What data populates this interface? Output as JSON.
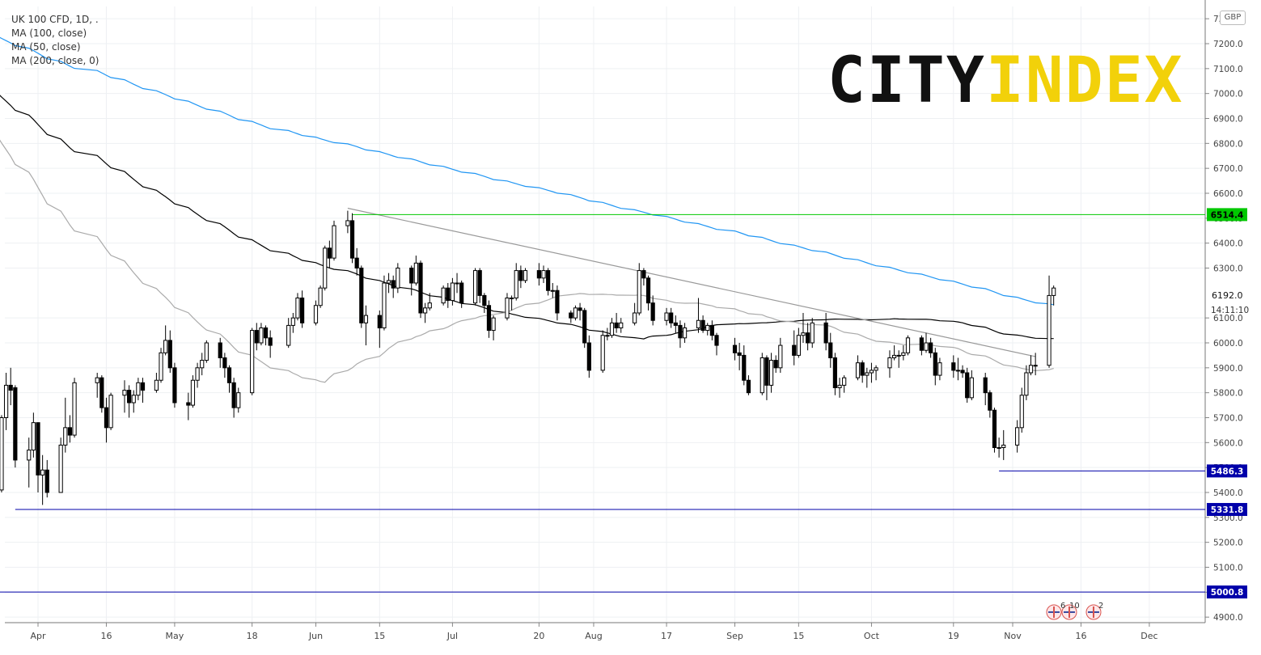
{
  "header": {
    "symbol": "UK 100 CFD, 1D, .",
    "indicators": [
      "MA (100, close)",
      "MA (50, close)",
      "MA (200, close, 0)"
    ]
  },
  "logo": {
    "part1": "CITY",
    "part2": "INDEX"
  },
  "currency": "GBP",
  "clock": "14:11:10",
  "events": [
    "6",
    "10",
    "2"
  ],
  "colors": {
    "up_candle": "#ffffff",
    "down_candle": "#000000",
    "candle_border": "#000000",
    "ma100": "#000000",
    "ma50": "#aaaaaa",
    "ma200": "#2196f3",
    "resistance_line": "#00c800",
    "support_line": "#0000aa",
    "trend_line": "#999999",
    "logo_accent": "#f2d10a"
  },
  "chart_data": {
    "type": "candlestick",
    "y_ticks": [
      "7300.0",
      "7200.0",
      "7100.0",
      "7000.0",
      "6900.0",
      "6800.0",
      "6700.0",
      "6600.0",
      "6500.0",
      "6400.0",
      "6300.0",
      "6192.0",
      "6100.0",
      "6000.0",
      "5900.0",
      "5800.0",
      "5700.0",
      "5600.0",
      "5500.0",
      "5400.0",
      "5300.0",
      "5200.0",
      "5100.0",
      "5000.0",
      "4900.0"
    ],
    "x_ticks": [
      "Apr",
      "16",
      "May",
      "18",
      "Jun",
      "15",
      "Jul",
      "20",
      "Aug",
      "17",
      "Sep",
      "15",
      "Oct",
      "19",
      "Nov",
      "16",
      "Dec"
    ],
    "ylim": [
      4860,
      7350
    ],
    "price_labels": [
      {
        "value": 6514.4,
        "text": "6514.4",
        "kind": "resistance"
      },
      {
        "value": 5486.3,
        "text": "5486.3",
        "kind": "support"
      },
      {
        "value": 5331.8,
        "text": "5331.8",
        "kind": "support"
      },
      {
        "value": 5000.8,
        "text": "5000.8",
        "kind": "support"
      }
    ],
    "trend_line": {
      "from": [
        "Jun 8",
        6540
      ],
      "to": [
        "Nov 6",
        5945
      ]
    },
    "last_price": 6192.0,
    "candles": [
      [
        "Mar 23",
        5200,
        5410,
        4990,
        5450
      ],
      [
        "Mar 24",
        5410,
        5700,
        5400,
        5710
      ],
      [
        "Mar 25",
        5700,
        5830,
        5650,
        5880
      ],
      [
        "Mar 26",
        5830,
        5810,
        5750,
        5900
      ],
      [
        "Mar 27",
        5820,
        5530,
        5500,
        5830
      ],
      [
        "Mar 30",
        5530,
        5570,
        5420,
        5620
      ],
      [
        "Mar 31",
        5570,
        5680,
        5540,
        5720
      ],
      [
        "Apr 1",
        5680,
        5470,
        5400,
        5680
      ],
      [
        "Apr 2",
        5470,
        5490,
        5350,
        5550
      ],
      [
        "Apr 3",
        5490,
        5400,
        5380,
        5530
      ],
      [
        "Apr 6",
        5400,
        5590,
        5400,
        5620
      ],
      [
        "Apr 7",
        5590,
        5660,
        5560,
        5780
      ],
      [
        "Apr 8",
        5660,
        5630,
        5600,
        5710
      ],
      [
        "Apr 9",
        5630,
        5840,
        5620,
        5860
      ],
      [
        "Apr 14",
        5840,
        5860,
        5780,
        5880
      ],
      [
        "Apr 15",
        5860,
        5740,
        5720,
        5870
      ],
      [
        "Apr 16",
        5740,
        5660,
        5600,
        5780
      ],
      [
        "Apr 17",
        5660,
        5790,
        5650,
        5800
      ],
      [
        "Apr 20",
        5790,
        5810,
        5720,
        5850
      ],
      [
        "Apr 21",
        5810,
        5760,
        5700,
        5830
      ],
      [
        "Apr 22",
        5760,
        5790,
        5720,
        5810
      ],
      [
        "Apr 23",
        5790,
        5840,
        5770,
        5860
      ],
      [
        "Apr 24",
        5840,
        5810,
        5760,
        5860
      ],
      [
        "Apr 27",
        5810,
        5850,
        5800,
        5880
      ],
      [
        "Apr 28",
        5850,
        5960,
        5840,
        5980
      ],
      [
        "Apr 29",
        5960,
        6010,
        5950,
        6070
      ],
      [
        "Apr 30",
        6010,
        5900,
        5880,
        6050
      ],
      [
        "May 1",
        5900,
        5760,
        5740,
        5920
      ],
      [
        "May 4",
        5760,
        5750,
        5690,
        5800
      ],
      [
        "May 5",
        5750,
        5850,
        5740,
        5870
      ],
      [
        "May 6",
        5850,
        5900,
        5820,
        5920
      ],
      [
        "May 7",
        5900,
        5930,
        5870,
        5960
      ],
      [
        "May 8",
        5930,
        6000,
        5920,
        6010
      ],
      [
        "May 11",
        6000,
        5940,
        5900,
        6020
      ],
      [
        "May 12",
        5940,
        5900,
        5860,
        5960
      ],
      [
        "May 13",
        5900,
        5840,
        5800,
        5910
      ],
      [
        "May 14",
        5840,
        5740,
        5700,
        5860
      ],
      [
        "May 15",
        5740,
        5800,
        5720,
        5820
      ],
      [
        "May 18",
        5800,
        6050,
        5790,
        6060
      ],
      [
        "May 19",
        6050,
        6000,
        5970,
        6080
      ],
      [
        "May 20",
        6000,
        6060,
        5990,
        6080
      ],
      [
        "May 21",
        6060,
        6020,
        5990,
        6070
      ],
      [
        "May 22",
        6020,
        5990,
        5940,
        6050
      ],
      [
        "May 26",
        5990,
        6070,
        5980,
        6100
      ],
      [
        "May 27",
        6070,
        6100,
        6040,
        6120
      ],
      [
        "May 28",
        6100,
        6180,
        6090,
        6200
      ],
      [
        "May 29",
        6180,
        6080,
        6060,
        6210
      ],
      [
        "Jun 1",
        6080,
        6150,
        6070,
        6170
      ],
      [
        "Jun 2",
        6150,
        6220,
        6140,
        6230
      ],
      [
        "Jun 3",
        6220,
        6380,
        6210,
        6390
      ],
      [
        "Jun 4",
        6380,
        6340,
        6300,
        6410
      ],
      [
        "Jun 5",
        6340,
        6470,
        6330,
        6490
      ],
      [
        "Jun 8",
        6470,
        6490,
        6440,
        6530
      ],
      [
        "Jun 9",
        6490,
        6340,
        6320,
        6520
      ],
      [
        "Jun 10",
        6340,
        6300,
        6270,
        6380
      ],
      [
        "Jun 11",
        6300,
        6080,
        6060,
        6310
      ],
      [
        "Jun 12",
        6080,
        6110,
        5990,
        6150
      ],
      [
        "Jun 15",
        6110,
        6060,
        5980,
        6130
      ],
      [
        "Jun 16",
        6060,
        6240,
        6050,
        6270
      ],
      [
        "Jun 17",
        6240,
        6250,
        6200,
        6280
      ],
      [
        "Jun 18",
        6250,
        6220,
        6180,
        6270
      ],
      [
        "Jun 19",
        6220,
        6300,
        6200,
        6320
      ],
      [
        "Jun 22",
        6300,
        6240,
        6190,
        6310
      ],
      [
        "Jun 23",
        6240,
        6320,
        6230,
        6350
      ],
      [
        "Jun 24",
        6320,
        6120,
        6100,
        6330
      ],
      [
        "Jun 25",
        6120,
        6140,
        6080,
        6160
      ],
      [
        "Jun 26",
        6140,
        6160,
        6130,
        6200
      ],
      [
        "Jun 29",
        6160,
        6220,
        6150,
        6230
      ],
      [
        "Jun 30",
        6220,
        6170,
        6140,
        6240
      ],
      [
        "Jul 1",
        6170,
        6240,
        6150,
        6260
      ],
      [
        "Jul 2",
        6240,
        6240,
        6200,
        6280
      ],
      [
        "Jul 3",
        6240,
        6160,
        6140,
        6250
      ],
      [
        "Jul 6",
        6160,
        6290,
        6150,
        6300
      ],
      [
        "Jul 7",
        6290,
        6190,
        6160,
        6300
      ],
      [
        "Jul 8",
        6190,
        6150,
        6120,
        6200
      ],
      [
        "Jul 9",
        6150,
        6050,
        6020,
        6170
      ],
      [
        "Jul 10",
        6050,
        6100,
        6010,
        6110
      ],
      [
        "Jul 13",
        6100,
        6180,
        6090,
        6200
      ],
      [
        "Jul 14",
        6180,
        6180,
        6130,
        6190
      ],
      [
        "Jul 15",
        6180,
        6290,
        6170,
        6320
      ],
      [
        "Jul 16",
        6290,
        6250,
        6220,
        6310
      ],
      [
        "Jul 17",
        6250,
        6290,
        6240,
        6300
      ],
      [
        "Jul 20",
        6290,
        6260,
        6230,
        6320
      ],
      [
        "Jul 21",
        6260,
        6290,
        6240,
        6310
      ],
      [
        "Jul 22",
        6290,
        6210,
        6190,
        6300
      ],
      [
        "Jul 23",
        6210,
        6210,
        6180,
        6240
      ],
      [
        "Jul 24",
        6210,
        6120,
        6090,
        6230
      ],
      [
        "Jul 27",
        6120,
        6100,
        6080,
        6130
      ],
      [
        "Jul 28",
        6100,
        6140,
        6090,
        6150
      ],
      [
        "Jul 29",
        6140,
        6130,
        6090,
        6160
      ],
      [
        "Jul 30",
        6130,
        6000,
        5980,
        6140
      ],
      [
        "Jul 31",
        6000,
        5890,
        5860,
        6030
      ],
      [
        "Aug 3",
        5890,
        6030,
        5880,
        6050
      ],
      [
        "Aug 4",
        6030,
        6030,
        6010,
        6060
      ],
      [
        "Aug 5",
        6030,
        6080,
        6020,
        6100
      ],
      [
        "Aug 6",
        6080,
        6060,
        6040,
        6120
      ],
      [
        "Aug 7",
        6060,
        6080,
        6040,
        6100
      ],
      [
        "Aug 10",
        6080,
        6120,
        6070,
        6160
      ],
      [
        "Aug 11",
        6120,
        6290,
        6110,
        6320
      ],
      [
        "Aug 12",
        6290,
        6260,
        6230,
        6300
      ],
      [
        "Aug 13",
        6260,
        6160,
        6130,
        6270
      ],
      [
        "Aug 14",
        6160,
        6090,
        6070,
        6190
      ],
      [
        "Aug 17",
        6090,
        6120,
        6070,
        6140
      ],
      [
        "Aug 18",
        6120,
        6080,
        6060,
        6140
      ],
      [
        "Aug 19",
        6080,
        6070,
        6040,
        6110
      ],
      [
        "Aug 20",
        6070,
        6020,
        5980,
        6090
      ],
      [
        "Aug 21",
        6020,
        6060,
        6000,
        6080
      ],
      [
        "Aug 24",
        6060,
        6090,
        6040,
        6180
      ],
      [
        "Aug 25",
        6090,
        6050,
        6040,
        6110
      ],
      [
        "Aug 26",
        6050,
        6070,
        6030,
        6080
      ],
      [
        "Aug 27",
        6070,
        6030,
        6010,
        6090
      ],
      [
        "Aug 28",
        6030,
        5990,
        5950,
        6040
      ],
      [
        "Sep 1",
        5990,
        5960,
        5930,
        6020
      ],
      [
        "Sep 2",
        5960,
        5950,
        5890,
        6000
      ],
      [
        "Sep 3",
        5950,
        5850,
        5830,
        5990
      ],
      [
        "Sep 4",
        5850,
        5800,
        5790,
        5870
      ],
      [
        "Sep 7",
        5800,
        5940,
        5790,
        5960
      ],
      [
        "Sep 8",
        5940,
        5830,
        5770,
        5950
      ],
      [
        "Sep 9",
        5830,
        5930,
        5800,
        5960
      ],
      [
        "Sep 10",
        5930,
        5900,
        5880,
        5950
      ],
      [
        "Sep 11",
        5900,
        5990,
        5880,
        6020
      ],
      [
        "Sep 14",
        5990,
        5950,
        5910,
        6050
      ],
      [
        "Sep 15",
        5950,
        6030,
        5940,
        6060
      ],
      [
        "Sep 16",
        6030,
        6040,
        6000,
        6120
      ],
      [
        "Sep 17",
        6040,
        6000,
        5970,
        6080
      ],
      [
        "Sep 18",
        6000,
        6080,
        5980,
        6100
      ],
      [
        "Sep 21",
        6080,
        6000,
        5970,
        6120
      ],
      [
        "Sep 22",
        6000,
        5940,
        5900,
        6040
      ],
      [
        "Sep 23",
        5940,
        5820,
        5790,
        5960
      ],
      [
        "Sep 24",
        5820,
        5830,
        5780,
        5860
      ],
      [
        "Sep 25",
        5830,
        5860,
        5800,
        5870
      ],
      [
        "Sep 28",
        5860,
        5920,
        5850,
        5950
      ],
      [
        "Sep 29",
        5920,
        5870,
        5840,
        5930
      ],
      [
        "Sep 30",
        5870,
        5880,
        5820,
        5900
      ],
      [
        "Oct 1",
        5880,
        5890,
        5840,
        5920
      ],
      [
        "Oct 2",
        5890,
        5900,
        5850,
        5910
      ],
      [
        "Oct 5",
        5900,
        5940,
        5860,
        5970
      ],
      [
        "Oct 6",
        5940,
        5950,
        5930,
        5990
      ],
      [
        "Oct 7",
        5950,
        5950,
        5900,
        5970
      ],
      [
        "Oct 8",
        5950,
        5960,
        5930,
        5990
      ],
      [
        "Oct 9",
        5960,
        6020,
        5950,
        6030
      ],
      [
        "Oct 12",
        6020,
        5970,
        5950,
        6030
      ],
      [
        "Oct 13",
        5970,
        6000,
        5960,
        6040
      ],
      [
        "Oct 14",
        6000,
        5960,
        5940,
        6020
      ],
      [
        "Oct 15",
        5960,
        5870,
        5830,
        5980
      ],
      [
        "Oct 16",
        5870,
        5920,
        5850,
        5940
      ],
      [
        "Oct 19",
        5920,
        5890,
        5860,
        5950
      ],
      [
        "Oct 20",
        5890,
        5890,
        5850,
        5940
      ],
      [
        "Oct 21",
        5890,
        5880,
        5860,
        5910
      ],
      [
        "Oct 22",
        5880,
        5780,
        5760,
        5900
      ],
      [
        "Oct 23",
        5780,
        5860,
        5770,
        5890
      ],
      [
        "Oct 26",
        5860,
        5800,
        5750,
        5880
      ],
      [
        "Oct 27",
        5800,
        5730,
        5700,
        5810
      ],
      [
        "Oct 28",
        5730,
        5580,
        5560,
        5740
      ],
      [
        "Oct 29",
        5580,
        5580,
        5540,
        5620
      ],
      [
        "Oct 30",
        5580,
        5590,
        5530,
        5650
      ],
      [
        "Nov 2",
        5590,
        5660,
        5560,
        5690
      ],
      [
        "Nov 3",
        5660,
        5790,
        5640,
        5820
      ],
      [
        "Nov 4",
        5790,
        5880,
        5770,
        5910
      ],
      [
        "Nov 5",
        5880,
        5910,
        5870,
        5950
      ],
      [
        "Nov 6",
        5910,
        5910,
        5870,
        5960
      ],
      [
        "Nov 9",
        5910,
        6190,
        5900,
        6270
      ],
      [
        "Nov 10",
        6190,
        6220,
        6150,
        6230
      ]
    ]
  }
}
